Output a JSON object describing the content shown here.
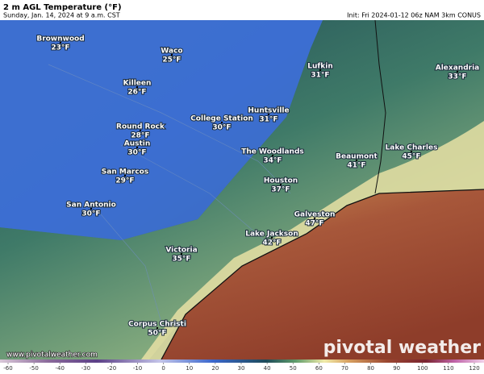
{
  "header": {
    "title": "2 m AGL Temperature (°F)",
    "subtitle": "Sunday, Jan. 14, 2024 at 9 a.m. CST",
    "init": "Init: Fri 2024-01-12 06z NAM 3km CONUS"
  },
  "cities": [
    {
      "name": "Brownwood",
      "temp": "23°F"
    },
    {
      "name": "Waco",
      "temp": "25°F"
    },
    {
      "name": "Lufkin",
      "temp": "31°F"
    },
    {
      "name": "Alexandria",
      "temp": "33°F"
    },
    {
      "name": "Killeen",
      "temp": "26°F"
    },
    {
      "name": "Huntsville",
      "temp": "31°F"
    },
    {
      "name": "College Station",
      "temp": "30°F"
    },
    {
      "name": "Round Rock",
      "temp": "28°F"
    },
    {
      "name": "Austin",
      "temp": "30°F"
    },
    {
      "name": "The Woodlands",
      "temp": "34°F"
    },
    {
      "name": "Lake Charles",
      "temp": "45°F"
    },
    {
      "name": "Beaumont",
      "temp": "41°F"
    },
    {
      "name": "San Marcos",
      "temp": "29°F"
    },
    {
      "name": "Houston",
      "temp": "37°F"
    },
    {
      "name": "San Antonio",
      "temp": "30°F"
    },
    {
      "name": "Galveston",
      "temp": "47°F"
    },
    {
      "name": "Lake Jackson",
      "temp": "42°F"
    },
    {
      "name": "Victoria",
      "temp": "35°F"
    },
    {
      "name": "Corpus Christi",
      "temp": "50°F"
    }
  ],
  "colorbar": {
    "ticks": [
      -60,
      -50,
      -40,
      -30,
      -20,
      -10,
      0,
      10,
      20,
      30,
      40,
      50,
      60,
      70,
      80,
      90,
      100,
      110,
      120
    ]
  },
  "watermark": {
    "url": "www.pivotalweather.com",
    "logo": "pivotal weather"
  }
}
